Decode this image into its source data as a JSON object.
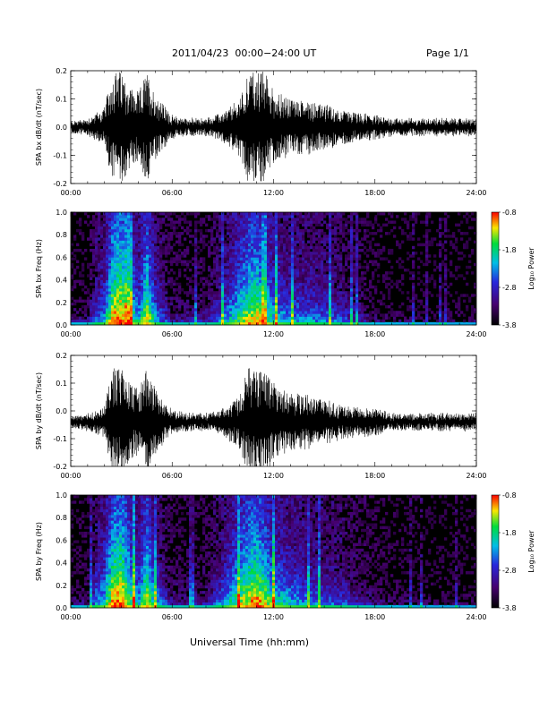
{
  "header": {
    "title": "2011/04/23  00:00−24:00 UT",
    "page": "Page 1/1"
  },
  "chart_data": [
    {
      "type": "line",
      "ylabel": "SPA bx dB/dt (nT/sec)",
      "xlim": [
        0,
        24
      ],
      "ylim": [
        -0.2,
        0.2
      ],
      "x_ticks": [
        "00:00",
        "06:00",
        "12:00",
        "18:00",
        "24:00"
      ],
      "y_ticks": [
        "-0.2",
        "-0.1",
        "0.0",
        "0.1",
        "0.2"
      ],
      "envelope": {
        "hours": [
          0,
          1,
          2,
          2.5,
          3,
          3.5,
          4,
          4.5,
          5,
          6,
          7,
          8,
          9,
          10,
          10.5,
          11,
          11.5,
          12,
          13,
          14,
          15,
          16,
          17,
          18,
          19,
          20,
          21,
          22,
          23,
          24
        ],
        "amplitude": [
          0.02,
          0.03,
          0.07,
          0.2,
          0.2,
          0.15,
          0.12,
          0.2,
          0.12,
          0.04,
          0.03,
          0.03,
          0.05,
          0.1,
          0.2,
          0.2,
          0.2,
          0.13,
          0.1,
          0.1,
          0.08,
          0.06,
          0.05,
          0.04,
          0.03,
          0.03,
          0.03,
          0.03,
          0.03,
          0.03
        ]
      },
      "offset": 0.0
    },
    {
      "type": "heatmap",
      "ylabel": "SPA bx Freq (Hz)",
      "xlim": [
        0,
        24
      ],
      "ylim": [
        0,
        1
      ],
      "x_ticks": [
        "00:00",
        "06:00",
        "12:00",
        "18:00",
        "24:00"
      ],
      "y_ticks": [
        "0.0",
        "0.2",
        "0.4",
        "0.6",
        "0.8",
        "1.0"
      ],
      "colorbar": {
        "label": "Log₁₀ Power",
        "ticks": [
          "-0.8",
          "-1.8",
          "-2.8",
          "-3.8"
        ],
        "range": [
          -3.8,
          -0.8
        ]
      },
      "activity": {
        "hours": [
          0,
          1,
          1.5,
          2,
          2.5,
          3,
          3.5,
          4,
          4.5,
          5,
          6,
          8,
          10,
          10.5,
          11,
          11.5,
          12,
          13,
          14,
          15,
          16,
          17,
          18,
          19,
          20,
          21,
          22,
          23,
          24
        ],
        "level": [
          0.2,
          0.25,
          0.5,
          0.6,
          0.95,
          1.0,
          0.8,
          0.6,
          0.9,
          0.6,
          0.3,
          0.3,
          0.75,
          0.85,
          0.9,
          0.8,
          0.65,
          0.55,
          0.55,
          0.5,
          0.45,
          0.35,
          0.2,
          0.18,
          0.15,
          0.15,
          0.15,
          0.15,
          0.15
        ]
      }
    },
    {
      "type": "line",
      "ylabel": "SPA by dB/dt (nT/sec)",
      "xlim": [
        0,
        24
      ],
      "ylim": [
        -0.2,
        0.2
      ],
      "x_ticks": [
        "00:00",
        "06:00",
        "12:00",
        "18:00",
        "24:00"
      ],
      "y_ticks": [
        "-0.2",
        "-0.1",
        "0.0",
        "0.1",
        "0.2"
      ],
      "envelope": {
        "hours": [
          0,
          1,
          2,
          2.5,
          3,
          3.5,
          4,
          4.5,
          5,
          6,
          7,
          8,
          9,
          10,
          10.5,
          11,
          11.5,
          12,
          13,
          14,
          15,
          16,
          17,
          18,
          19,
          20,
          21,
          22,
          23,
          24
        ],
        "amplitude": [
          0.02,
          0.03,
          0.06,
          0.2,
          0.2,
          0.14,
          0.12,
          0.2,
          0.12,
          0.04,
          0.03,
          0.03,
          0.05,
          0.1,
          0.2,
          0.2,
          0.2,
          0.14,
          0.1,
          0.1,
          0.08,
          0.06,
          0.05,
          0.05,
          0.03,
          0.03,
          0.03,
          0.03,
          0.03,
          0.03
        ]
      },
      "offset": -0.04
    },
    {
      "type": "heatmap",
      "ylabel": "SPA by Freq (Hz)",
      "xlim": [
        0,
        24
      ],
      "ylim": [
        0,
        1
      ],
      "x_ticks": [
        "00:00",
        "06:00",
        "12:00",
        "18:00",
        "24:00"
      ],
      "y_ticks": [
        "0.0",
        "0.2",
        "0.4",
        "0.6",
        "0.8",
        "1.0"
      ],
      "colorbar": {
        "label": "Log₁₀ Power",
        "ticks": [
          "-0.8",
          "-1.8",
          "-2.8",
          "-3.8"
        ],
        "range": [
          -3.8,
          -0.8
        ]
      },
      "activity": {
        "hours": [
          0,
          1,
          1.5,
          2,
          2.5,
          3,
          3.5,
          4,
          4.5,
          5,
          6,
          8,
          10,
          10.5,
          11,
          11.5,
          12,
          13,
          14,
          15,
          16,
          17,
          18,
          19,
          20,
          21,
          22,
          23,
          24
        ],
        "level": [
          0.2,
          0.25,
          0.55,
          0.65,
          0.95,
          1.0,
          0.8,
          0.6,
          0.9,
          0.6,
          0.3,
          0.3,
          0.8,
          0.9,
          0.95,
          0.85,
          0.7,
          0.6,
          0.55,
          0.5,
          0.45,
          0.35,
          0.25,
          0.2,
          0.18,
          0.15,
          0.15,
          0.15,
          0.15
        ]
      }
    }
  ],
  "xlabel": "Universal Time (hh:mm)"
}
